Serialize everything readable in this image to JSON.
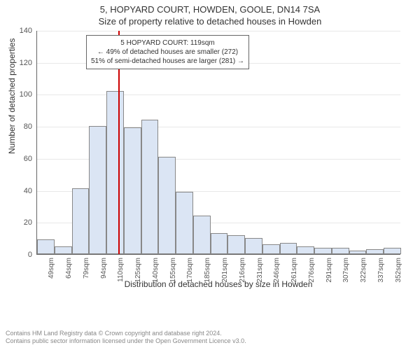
{
  "title": {
    "line1": "5, HOPYARD COURT, HOWDEN, GOOLE, DN14 7SA",
    "line2": "Size of property relative to detached houses in Howden"
  },
  "chart": {
    "type": "histogram",
    "ylabel": "Number of detached properties",
    "xlabel": "Distribution of detached houses by size in Howden",
    "ylim": [
      0,
      140
    ],
    "ytick_step": 20,
    "yticks": [
      0,
      20,
      40,
      60,
      80,
      100,
      120,
      140
    ],
    "bar_fill": "#dbe5f4",
    "bar_stroke": "#888888",
    "grid_color": "#e8e8e8",
    "background": "#ffffff",
    "reference_line": {
      "x_index": 4.7,
      "color": "#cc0000"
    },
    "categories": [
      "49sqm",
      "64sqm",
      "79sqm",
      "94sqm",
      "110sqm",
      "125sqm",
      "140sqm",
      "155sqm",
      "170sqm",
      "185sqm",
      "201sqm",
      "216sqm",
      "231sqm",
      "246sqm",
      "261sqm",
      "276sqm",
      "291sqm",
      "307sqm",
      "322sqm",
      "337sqm",
      "352sqm"
    ],
    "values": [
      9,
      5,
      41,
      80,
      102,
      79,
      84,
      61,
      39,
      24,
      13,
      12,
      10,
      6,
      7,
      5,
      4,
      4,
      2,
      3,
      4
    ],
    "annotation": {
      "line1": "5 HOPYARD COURT: 119sqm",
      "line2": "← 49% of detached houses are smaller (272)",
      "line3": "51% of semi-detached houses are larger (281) →"
    }
  },
  "footnote": {
    "line1": "Contains HM Land Registry data © Crown copyright and database right 2024.",
    "line2": "Contains public sector information licensed under the Open Government Licence v3.0."
  }
}
